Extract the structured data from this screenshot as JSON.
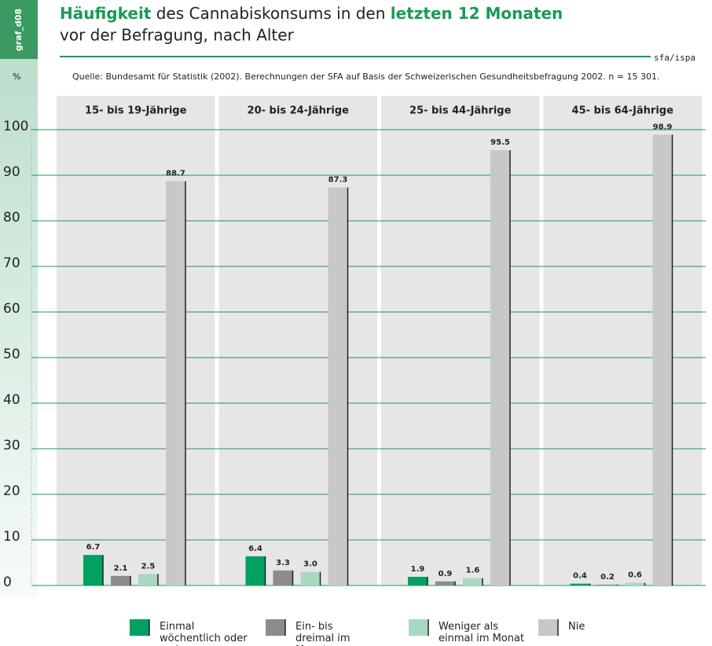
{
  "tag": "graf_d08",
  "logo": "sfa/ispa",
  "chart_data": {
    "type": "bar",
    "title": [
      "Häufigkeit",
      "des Cannabiskonsums in den",
      "letzten 12 Monaten"
    ],
    "subtitle": "vor der Befragung, nach Alter",
    "ylabel": "%",
    "source": "Quelle: Bundesamt für Statistik (2002). Berechnungen der SFA auf Basis der Schweizerischen Gesundheitsbefragung 2002.  n = 15 301.",
    "categories": [
      "15- bis 19-Jährige",
      "20- bis 24-Jährige",
      "25- bis 44-Jährige",
      "45- bis 64-Jährige"
    ],
    "series": [
      {
        "name": "Einmal wöchentlich oder mehr",
        "color": "#00a060",
        "values": [
          6.7,
          6.4,
          1.9,
          0.4
        ],
        "value_labels": [
          "6.7",
          "6.4",
          "1.9",
          "0.4"
        ]
      },
      {
        "name": "Ein- bis dreimal im Monat",
        "color": "#8c8c8c",
        "values": [
          2.1,
          3.3,
          0.9,
          0.2
        ],
        "value_labels": [
          "2.1",
          "3.3",
          "0.9",
          "0.2"
        ]
      },
      {
        "name": "Weniger als einmal im Monat",
        "color": "#a8d8c0",
        "values": [
          2.5,
          3.0,
          1.6,
          0.6
        ],
        "value_labels": [
          "2.5",
          "3.0",
          "1.6",
          "0.6"
        ]
      },
      {
        "name": "Nie",
        "color": "#c8c8c8",
        "values": [
          88.7,
          87.3,
          95.5,
          98.9
        ],
        "value_labels": [
          "88.7",
          "87.3",
          "95.5",
          "98.9"
        ]
      }
    ],
    "ylim": [
      0,
      100
    ],
    "yticks": [
      0,
      10,
      20,
      30,
      40,
      50,
      60,
      70,
      80,
      90,
      100
    ],
    "grid": true
  }
}
